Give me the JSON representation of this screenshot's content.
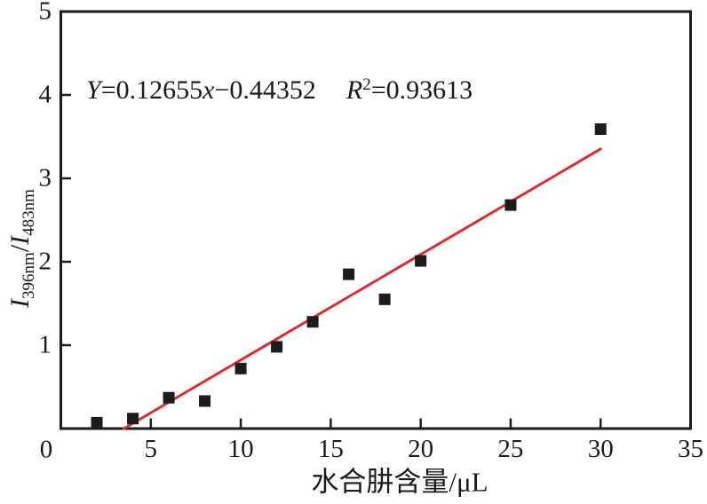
{
  "chart_data": {
    "type": "scatter",
    "title": "",
    "xlabel": "水合肼含量/μL",
    "ylabel": "I396nm/I483nm",
    "ylabel_parts": {
      "sym1": "I",
      "sub1": "396nm",
      "divider": "/",
      "sym2": "I",
      "sub2": "483nm"
    },
    "origin_label": "0",
    "xlim": [
      0,
      35
    ],
    "ylim": [
      0,
      5
    ],
    "x_ticks": [
      0,
      5,
      10,
      15,
      20,
      25,
      30,
      35
    ],
    "y_ticks": [
      0,
      1,
      2,
      3,
      4,
      5
    ],
    "grid": false,
    "legend": false,
    "frame_color": "#1c1c1c",
    "series": [
      {
        "name": "data-points",
        "type": "scatter",
        "marker": "square",
        "color": "#1c1c1c",
        "x": [
          2,
          4,
          6,
          8,
          10,
          12,
          14,
          16,
          18,
          20,
          25,
          30
        ],
        "y": [
          0.07,
          0.12,
          0.37,
          0.33,
          0.72,
          0.98,
          1.28,
          1.85,
          1.55,
          2.01,
          2.68,
          3.59
        ]
      },
      {
        "name": "linear-fit",
        "type": "line",
        "color": "#dc2e31",
        "slope": 0.12655,
        "intercept": -0.44352,
        "r2": 0.93613,
        "x_range": [
          3.505,
          30
        ]
      }
    ]
  },
  "annotation": {
    "eq_y_var": "Y",
    "eq_slope": "=0.12655",
    "eq_x_var": "x",
    "eq_intercept": "−0.44352",
    "r_var": "R",
    "r_sup": "2",
    "r_value": "=0.93613"
  }
}
